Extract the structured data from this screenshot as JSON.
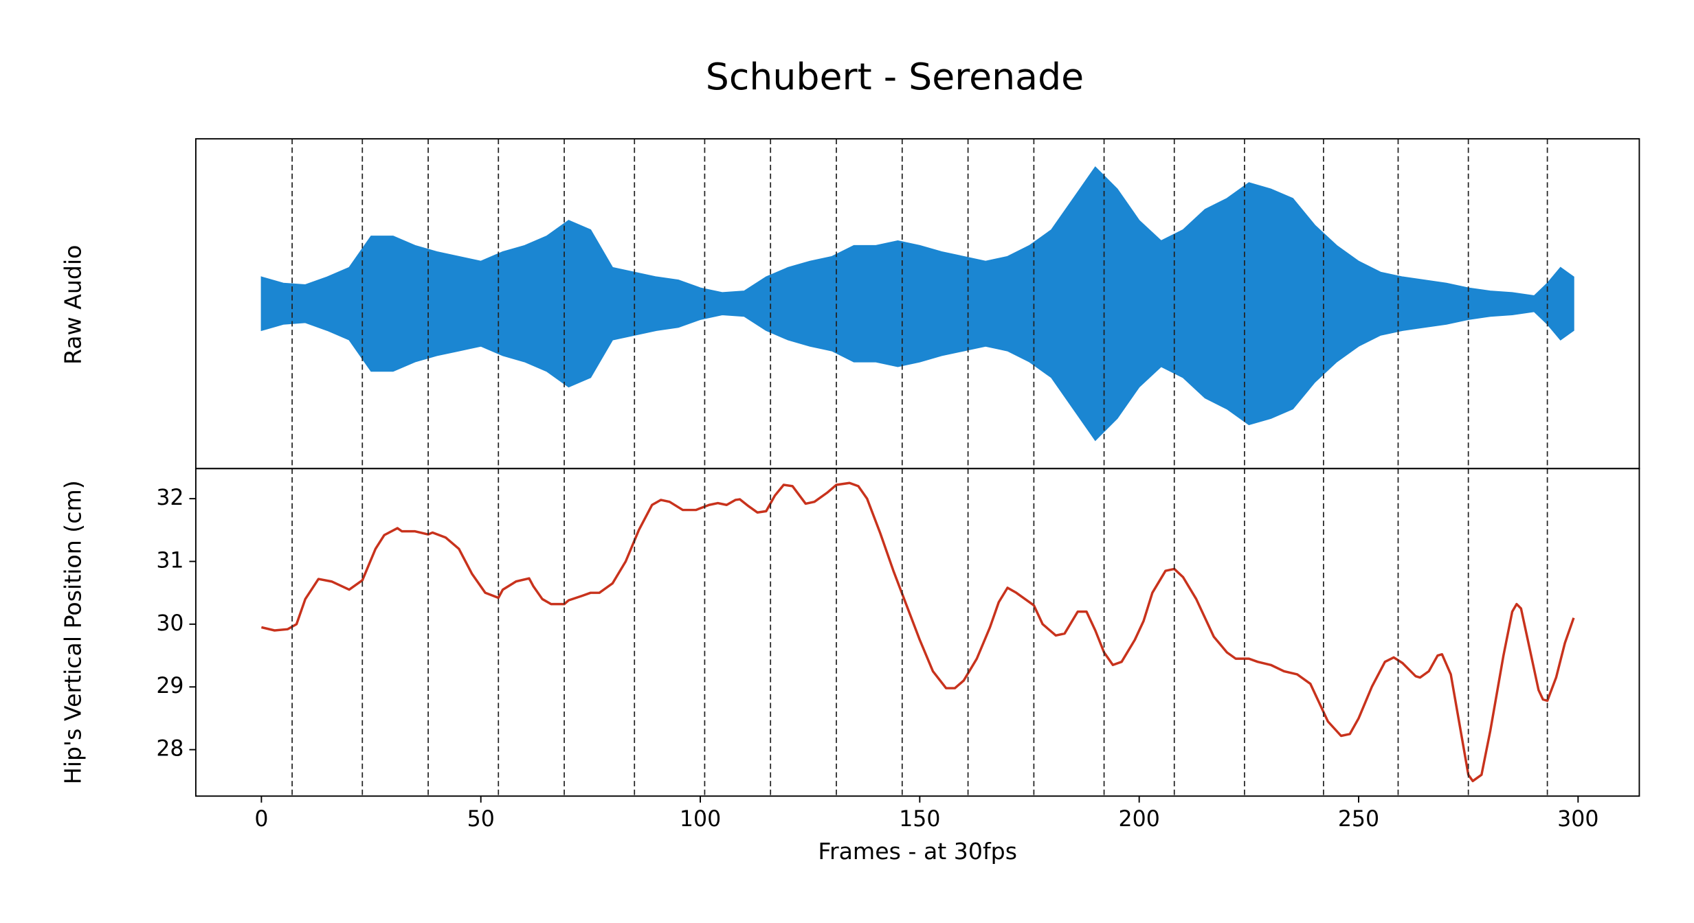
{
  "chart_data": [
    {
      "type": "area",
      "title": "Schubert - Serenade",
      "ylabel": "Raw Audio",
      "color": "#1b86d2",
      "symmetric": true,
      "ylim": [
        -1.05,
        1.05
      ],
      "x": [
        0,
        5,
        10,
        15,
        20,
        25,
        30,
        35,
        40,
        45,
        50,
        55,
        60,
        65,
        70,
        75,
        80,
        85,
        90,
        95,
        100,
        105,
        110,
        115,
        120,
        125,
        130,
        135,
        140,
        145,
        150,
        155,
        160,
        165,
        170,
        175,
        180,
        185,
        190,
        195,
        200,
        205,
        210,
        215,
        220,
        225,
        230,
        235,
        240,
        245,
        250,
        255,
        260,
        265,
        270,
        275,
        280,
        285,
        290,
        293,
        296,
        299
      ],
      "values": [
        0.17,
        0.13,
        0.12,
        0.17,
        0.23,
        0.43,
        0.43,
        0.37,
        0.33,
        0.3,
        0.27,
        0.33,
        0.37,
        0.43,
        0.53,
        0.47,
        0.23,
        0.2,
        0.17,
        0.15,
        0.1,
        0.07,
        0.08,
        0.17,
        0.23,
        0.27,
        0.3,
        0.37,
        0.37,
        0.4,
        0.37,
        0.33,
        0.3,
        0.27,
        0.3,
        0.37,
        0.47,
        0.67,
        0.87,
        0.73,
        0.53,
        0.4,
        0.47,
        0.6,
        0.67,
        0.77,
        0.73,
        0.67,
        0.5,
        0.37,
        0.27,
        0.2,
        0.17,
        0.15,
        0.13,
        0.1,
        0.08,
        0.07,
        0.05,
        0.13,
        0.23,
        0.17
      ],
      "vlines": [
        7,
        23,
        38,
        54,
        69,
        85,
        101,
        116,
        131,
        146,
        161,
        176,
        192,
        208,
        224,
        242,
        259,
        275,
        293
      ]
    },
    {
      "type": "line",
      "ylabel": "Hip's Vertical Position (cm)",
      "xlabel": "Frames - at 30fps",
      "color": "#c8321c",
      "xlim": [
        -14.95,
        313.95
      ],
      "xticks": [
        0,
        50,
        100,
        150,
        200,
        250,
        300
      ],
      "ylim": [
        27.26,
        32.48
      ],
      "yticks": [
        28,
        29,
        30,
        31,
        32
      ],
      "x": [
        0,
        3,
        6,
        8,
        10,
        13,
        16,
        20,
        23,
        26,
        28,
        31,
        32,
        35,
        38,
        39,
        42,
        45,
        48,
        51,
        54,
        55,
        58,
        61,
        62,
        64,
        66,
        69,
        70,
        73,
        75,
        77,
        80,
        83,
        86,
        89,
        91,
        93,
        96,
        99,
        102,
        104,
        106,
        108,
        109,
        111,
        113,
        115,
        117,
        119,
        121,
        124,
        126,
        129,
        131,
        134,
        136,
        138,
        141,
        144,
        147,
        150,
        153,
        156,
        158,
        160,
        163,
        166,
        168,
        170,
        172,
        174,
        176,
        178,
        181,
        183,
        186,
        188,
        190,
        192,
        194,
        196,
        199,
        201,
        203,
        206,
        208,
        210,
        213,
        217,
        220,
        222,
        225,
        227,
        230,
        233,
        236,
        239,
        241,
        243,
        246,
        248,
        250,
        253,
        256,
        258,
        260,
        263,
        264,
        266,
        268,
        269,
        271,
        273,
        275,
        276,
        278,
        280,
        283,
        285,
        286,
        287,
        289,
        291,
        292,
        293,
        295,
        297,
        299
      ],
      "values": [
        29.95,
        29.9,
        29.92,
        30.0,
        30.4,
        30.72,
        30.68,
        30.55,
        30.7,
        31.2,
        31.42,
        31.53,
        31.48,
        31.48,
        31.43,
        31.46,
        31.38,
        31.2,
        30.8,
        30.5,
        30.42,
        30.55,
        30.68,
        30.73,
        30.6,
        30.4,
        30.32,
        30.32,
        30.38,
        30.45,
        30.5,
        30.5,
        30.65,
        31.0,
        31.5,
        31.9,
        31.98,
        31.95,
        31.82,
        31.82,
        31.9,
        31.93,
        31.9,
        31.98,
        31.99,
        31.88,
        31.78,
        31.8,
        32.05,
        32.22,
        32.2,
        31.92,
        31.95,
        32.1,
        32.22,
        32.25,
        32.2,
        32.0,
        31.45,
        30.85,
        30.3,
        29.75,
        29.25,
        28.98,
        28.98,
        29.1,
        29.45,
        29.95,
        30.35,
        30.58,
        30.5,
        30.4,
        30.3,
        30.0,
        29.82,
        29.85,
        30.2,
        30.2,
        29.9,
        29.55,
        29.35,
        29.4,
        29.75,
        30.05,
        30.5,
        30.85,
        30.88,
        30.75,
        30.4,
        29.8,
        29.55,
        29.45,
        29.45,
        29.4,
        29.35,
        29.25,
        29.2,
        29.05,
        28.75,
        28.45,
        28.22,
        28.25,
        28.5,
        29.0,
        29.4,
        29.47,
        29.38,
        29.17,
        29.15,
        29.25,
        29.5,
        29.52,
        29.2,
        28.4,
        27.6,
        27.5,
        27.6,
        28.3,
        29.5,
        30.2,
        30.32,
        30.25,
        29.6,
        28.95,
        28.8,
        28.78,
        29.15,
        29.7,
        30.1
      ]
    }
  ]
}
